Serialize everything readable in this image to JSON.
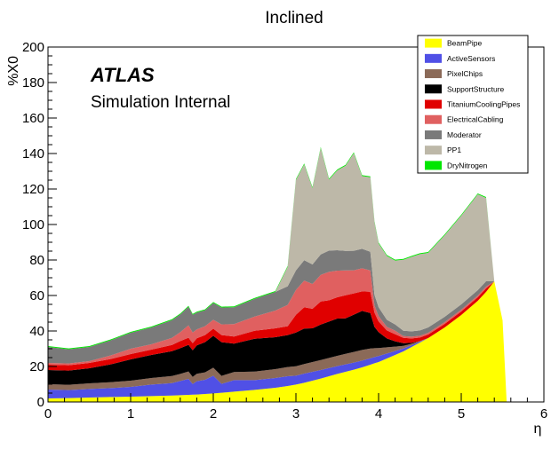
{
  "chart_data": {
    "type": "area",
    "stacked": true,
    "title": "Inclined",
    "annotation_bold": "ATLAS",
    "annotation_sub": "Simulation Internal",
    "xlabel": "η",
    "ylabel": "%X0",
    "xlim": [
      0,
      6
    ],
    "ylim": [
      0,
      200
    ],
    "xticks": [
      0,
      1,
      2,
      3,
      4,
      5,
      6
    ],
    "yticks": [
      0,
      20,
      40,
      60,
      80,
      100,
      120,
      140,
      160,
      180,
      200
    ],
    "grid": false,
    "legend_position": "top-right",
    "x": [
      0.0,
      0.25,
      0.5,
      0.75,
      1.0,
      1.25,
      1.5,
      1.6,
      1.7,
      1.75,
      1.8,
      1.9,
      2.0,
      2.1,
      2.25,
      2.5,
      2.75,
      2.9,
      3.0,
      3.1,
      3.2,
      3.3,
      3.4,
      3.5,
      3.6,
      3.7,
      3.8,
      3.9,
      3.95,
      4.0,
      4.1,
      4.2,
      4.3,
      4.4,
      4.5,
      4.6,
      4.7,
      4.8,
      4.9,
      5.0,
      5.1,
      5.2,
      5.3,
      5.4,
      5.5,
      5.55,
      5.6
    ],
    "series": [
      {
        "name": "BeamPipe",
        "color": "#ffff00",
        "values": [
          2,
          2.2,
          2.5,
          2.8,
          3,
          3.3,
          3.6,
          3.8,
          4,
          4.1,
          4.2,
          4.5,
          4.8,
          5.2,
          5.8,
          6.8,
          8,
          9,
          9.8,
          10.8,
          12,
          13.2,
          14.5,
          15.8,
          17,
          18.2,
          19.5,
          21,
          21.8,
          22.5,
          24.5,
          26.5,
          28.5,
          31,
          33.5,
          36,
          39,
          42,
          45.5,
          49,
          53,
          57,
          62,
          68,
          46,
          0,
          0
        ]
      },
      {
        "name": "ActiveSensors",
        "color": "#5050e6",
        "values": [
          5,
          4.5,
          4.8,
          5,
          5.5,
          6.5,
          7,
          8,
          9,
          6,
          7.5,
          8,
          10,
          5,
          6.5,
          5.5,
          5.5,
          5.5,
          5,
          5.2,
          5,
          4.8,
          4.6,
          4.4,
          4.2,
          4,
          3.8,
          3.6,
          3.5,
          3.4,
          2.8,
          2.2,
          1.6,
          1,
          0.5,
          0,
          0,
          0,
          0,
          0,
          0,
          0,
          0,
          0,
          0,
          0,
          0
        ]
      },
      {
        "name": "PixelChips",
        "color": "#8b6a58",
        "values": [
          3,
          3,
          3.2,
          3.3,
          3.5,
          3.7,
          4,
          4,
          4.2,
          4,
          4.2,
          4.2,
          4.5,
          4.5,
          4.6,
          4.8,
          5,
          5.2,
          5.3,
          5.4,
          5.5,
          5.6,
          5.7,
          5.8,
          5.9,
          6,
          6,
          5.5,
          5,
          4.5,
          3.5,
          2.5,
          1.5,
          0.8,
          0.3,
          0,
          0,
          0,
          0,
          0,
          0,
          0,
          0,
          0,
          0,
          0,
          0
        ]
      },
      {
        "name": "SupportStructure",
        "color": "#000000",
        "values": [
          8,
          8,
          8.5,
          10,
          12,
          13,
          14,
          14.5,
          15,
          15,
          16,
          17,
          18,
          19,
          16,
          18.5,
          18,
          18,
          19,
          20,
          19,
          20,
          20.5,
          21,
          20,
          21,
          22,
          20,
          12,
          9,
          5,
          3,
          1.5,
          0.5,
          0,
          0,
          0,
          0,
          0,
          0,
          0,
          0,
          0,
          0,
          0,
          0,
          0
        ]
      },
      {
        "name": "TitaniumCoolingPipes",
        "color": "#e00000",
        "values": [
          3,
          3,
          3,
          3,
          3,
          3,
          3.5,
          4,
          4,
          4,
          4,
          4,
          4,
          4,
          4,
          4.5,
          5,
          5,
          10,
          12,
          11,
          13,
          12,
          12,
          13,
          12,
          11,
          12,
          8,
          6,
          4.5,
          4,
          3,
          2.5,
          2,
          2,
          2,
          2,
          2,
          2,
          2,
          2,
          2,
          0,
          0,
          0,
          0
        ]
      },
      {
        "name": "ElectricalCabling",
        "color": "#e06060",
        "values": [
          1,
          1,
          1,
          2,
          3,
          3,
          4,
          5,
          7,
          6,
          5,
          5,
          5,
          6,
          7,
          8,
          10,
          12,
          14,
          15,
          14,
          15,
          16,
          15,
          14,
          13,
          13,
          12,
          4,
          3,
          2,
          2,
          1,
          1,
          1,
          1,
          1,
          1,
          1,
          1,
          1,
          1,
          1,
          0,
          0,
          0,
          0
        ]
      },
      {
        "name": "Moderator",
        "color": "#7a7a7a",
        "values": [
          9,
          8,
          8,
          8.5,
          9,
          9.5,
          10,
          10,
          10.5,
          10,
          9.5,
          9,
          9.5,
          9.5,
          9.5,
          10,
          10.5,
          10.5,
          11,
          11.5,
          11,
          11.5,
          12,
          11.5,
          11,
          11,
          11,
          10.5,
          6,
          5,
          4,
          3.5,
          3,
          3,
          3,
          3,
          3,
          3,
          3,
          3,
          3,
          3,
          3,
          0,
          0,
          0,
          0
        ]
      },
      {
        "name": "PP1",
        "color": "#bdb8a8",
        "values": [
          0,
          0,
          0,
          0,
          0,
          0,
          0,
          0,
          0,
          0,
          0,
          0,
          0,
          0,
          0,
          0,
          0,
          11,
          51,
          54,
          43,
          60,
          40,
          45,
          48,
          55,
          41,
          42,
          41,
          36,
          36,
          36,
          40,
          42,
          43,
          42,
          44,
          46,
          48,
          50,
          52,
          54,
          47,
          0,
          0,
          0,
          0
        ]
      },
      {
        "name": "DryNitrogen",
        "color": "#00e600",
        "values": [
          0.5,
          0.5,
          0.5,
          0.5,
          0.5,
          0.5,
          0.5,
          0.5,
          0.5,
          0.5,
          0.5,
          0.5,
          0.5,
          0.5,
          0.5,
          0.5,
          0.5,
          0.5,
          0.5,
          0.5,
          0.5,
          0.5,
          0.5,
          0.5,
          0.5,
          0.5,
          0.5,
          0.5,
          0.5,
          0.5,
          0.5,
          0.5,
          0.5,
          0.5,
          0.5,
          0.5,
          0.5,
          0.5,
          0.5,
          0.5,
          0.5,
          0.5,
          0.5,
          0,
          0,
          0,
          0
        ]
      }
    ]
  }
}
